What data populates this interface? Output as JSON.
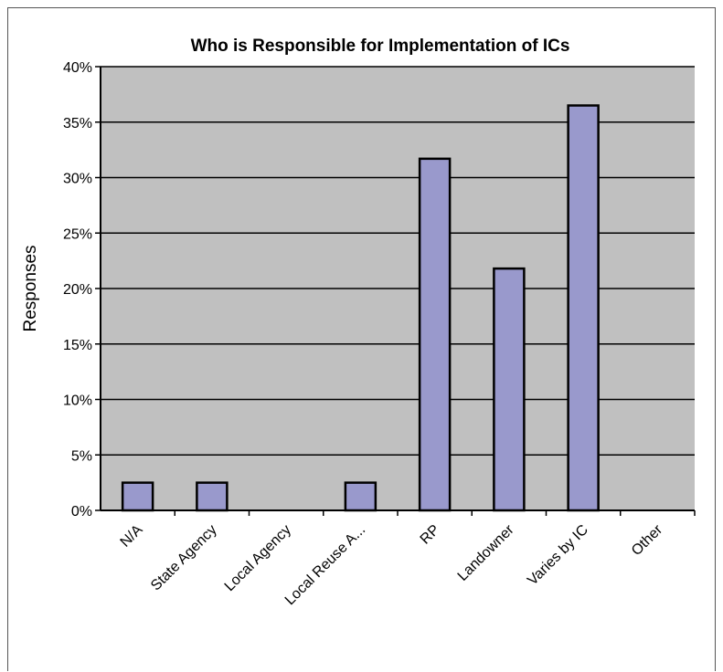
{
  "chart_data": {
    "type": "bar",
    "title": "Who is Responsible for Implementation of ICs",
    "xlabel": "",
    "ylabel": "Responses",
    "categories": [
      "N/A",
      "State Agency",
      "Local Agency",
      "Local Reuse A...",
      "RP",
      "Landowner",
      "Varies by IC",
      "Other"
    ],
    "values": [
      2.5,
      2.5,
      0,
      2.5,
      31.7,
      21.8,
      36.5,
      0
    ],
    "ylim": [
      0,
      40
    ],
    "yticks": [
      0,
      5,
      10,
      15,
      20,
      25,
      30,
      35,
      40
    ],
    "ytick_format": "%",
    "grid": true,
    "legend": "none",
    "colors": {
      "bar_fill": "#9999cc",
      "bar_stroke": "#000000",
      "plot_bg": "#c0c0c0",
      "grid": "#000000"
    }
  }
}
